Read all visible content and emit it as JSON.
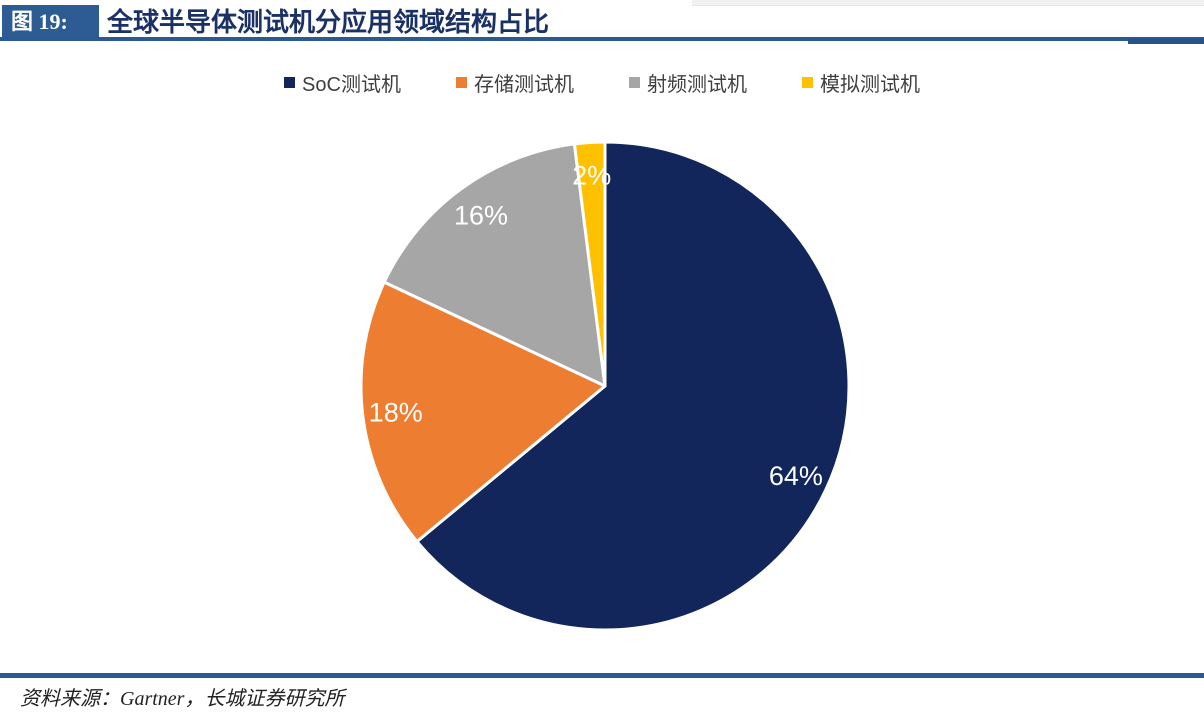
{
  "header": {
    "figure_label": "图 19:",
    "title": "全球半导体测试机分应用领域结构占比",
    "badge_color": "#2D5B94",
    "title_color": "#1B3166",
    "rule_color": "#2B5A93"
  },
  "chart_data": {
    "type": "pie",
    "title": "全球半导体测试机分应用领域结构占比",
    "categories": [
      "SoC测试机",
      "存储测试机",
      "射频测试机",
      "模拟测试机"
    ],
    "values": [
      64,
      18,
      16,
      2
    ],
    "labels": [
      "64%",
      "18%",
      "16%",
      "2%"
    ],
    "colors": [
      "#12265B",
      "#ED7D31",
      "#A6A6A6",
      "#FFC000"
    ],
    "slice_border_color": "#FFFFFF",
    "data_label_color": "#FFFFFF",
    "legend_position": "top",
    "start_angle_deg": 0,
    "direction": "clockwise"
  },
  "footer": {
    "source_text": "资料来源：Gartner，长城证券研究所"
  }
}
